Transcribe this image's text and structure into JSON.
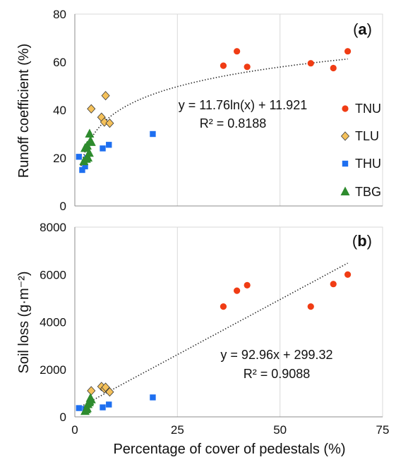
{
  "chart_data": [
    {
      "type": "scatter",
      "panel_label": {
        "open": "(",
        "letter": "a",
        "close": ")"
      },
      "ylabel": "Runoff coefficient  (%)",
      "xlabel": "",
      "xlim": [
        0,
        75
      ],
      "ylim": [
        0,
        80
      ],
      "x_ticks": [
        "0",
        "25",
        "50",
        "75"
      ],
      "y_ticks": [
        "0",
        "20",
        "40",
        "60",
        "80"
      ],
      "grid": "vertical",
      "legend_position": "right",
      "trendline": {
        "kind": "log",
        "a": 11.76,
        "b": 11.921,
        "x_range": [
          1.5,
          66.5
        ]
      },
      "equation": "y = 11.76ln(x) + 11.921",
      "r2": "R² = 0.8188",
      "series": [
        {
          "name": "TNU",
          "marker": "circle",
          "color": "#f03c14",
          "x": [
            36.2,
            39.5,
            42,
            57.5,
            63,
            66.5
          ],
          "y": [
            58.5,
            64.5,
            58,
            59.5,
            57.5,
            64.5
          ]
        },
        {
          "name": "TLU",
          "marker": "diamond",
          "color": "#f5c15a",
          "x": [
            4,
            6.5,
            7.2,
            7.5,
            8.5
          ],
          "y": [
            40.5,
            37,
            35,
            46,
            34.5
          ]
        },
        {
          "name": "THU",
          "marker": "square",
          "color": "#1e6ff0",
          "x": [
            1,
            1.8,
            2.5,
            3,
            6.8,
            8.3,
            19
          ],
          "y": [
            20.5,
            15,
            16.5,
            20,
            24,
            25.5,
            30
          ]
        },
        {
          "name": "TBG",
          "marker": "triangle",
          "color": "#2e8b2e",
          "x": [
            2.2,
            2.5,
            2.8,
            3,
            3.2,
            3.5,
            3.6,
            3.8,
            4
          ],
          "y": [
            18.5,
            24,
            19.5,
            25,
            20,
            22,
            30,
            27,
            26.5
          ]
        }
      ]
    },
    {
      "type": "scatter",
      "panel_label": {
        "open": "(",
        "letter": "b",
        "close": ")"
      },
      "ylabel": "Soil loss (g·m⁻²)",
      "xlabel": "Percentage of cover of pedestals  (%)",
      "xlim": [
        0,
        75
      ],
      "ylim": [
        0,
        8000
      ],
      "x_ticks": [
        "0",
        "25",
        "50",
        "75"
      ],
      "y_ticks": [
        "0",
        "2000",
        "4000",
        "6000",
        "8000"
      ],
      "grid": "vertical",
      "trendline": {
        "kind": "linear",
        "a": 92.96,
        "b": 299.32,
        "x_range": [
          1.5,
          66.5
        ]
      },
      "equation": "y = 92.96x + 299.32",
      "r2": "R² = 0.9088",
      "series": [
        {
          "name": "TNU",
          "marker": "circle",
          "color": "#f03c14",
          "x": [
            36.2,
            39.5,
            42,
            57.5,
            63,
            66.5
          ],
          "y": [
            4650,
            5320,
            5550,
            4650,
            5600,
            6000
          ]
        },
        {
          "name": "TLU",
          "marker": "diamond",
          "color": "#f5c15a",
          "x": [
            4,
            6.5,
            7.2,
            7.5,
            8.5
          ],
          "y": [
            1100,
            1280,
            1180,
            1250,
            1050
          ]
        },
        {
          "name": "THU",
          "marker": "square",
          "color": "#1e6ff0",
          "x": [
            1,
            2.5,
            6.8,
            8.3,
            19
          ],
          "y": [
            370,
            340,
            400,
            520,
            820
          ]
        },
        {
          "name": "TBG",
          "marker": "triangle",
          "color": "#2e8b2e",
          "x": [
            2.5,
            2.8,
            3,
            3.2,
            3.5,
            3.6,
            3.8,
            4
          ],
          "y": [
            230,
            300,
            350,
            520,
            600,
            650,
            780,
            720
          ]
        }
      ]
    }
  ]
}
